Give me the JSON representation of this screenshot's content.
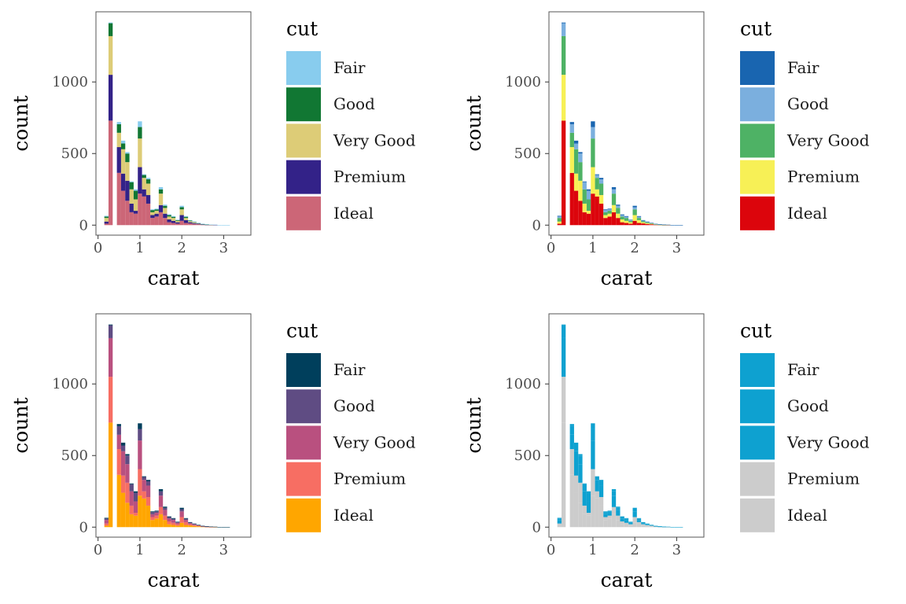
{
  "legend_title": "cut",
  "chart_data": [
    {
      "type": "bar",
      "stacked": true,
      "xlabel": "carat",
      "ylabel": "count",
      "xlim": [
        -0.05,
        3.65
      ],
      "ylim": [
        -70,
        1490
      ],
      "xticks": [
        0,
        1,
        2,
        3
      ],
      "yticks": [
        0,
        500,
        1000
      ],
      "grid": false,
      "legend_position": "right",
      "bin_width": 0.1,
      "categories": [
        0.2,
        0.3,
        0.5,
        0.6,
        0.7,
        0.8,
        0.9,
        1.0,
        1.1,
        1.2,
        1.3,
        1.4,
        1.5,
        1.6,
        1.7,
        1.8,
        1.9,
        2.0,
        2.1,
        2.2,
        2.3,
        2.4,
        2.5,
        2.6,
        2.7,
        2.8,
        2.9,
        3.0,
        3.1
      ],
      "series": [
        {
          "name": "Ideal",
          "color": "#CC6677",
          "values": [
            10,
            730,
            365,
            240,
            170,
            90,
            80,
            220,
            200,
            150,
            50,
            60,
            90,
            50,
            20,
            15,
            10,
            30,
            15,
            12,
            8,
            6,
            3,
            2,
            1,
            1,
            0,
            0,
            0
          ]
        },
        {
          "name": "Premium",
          "color": "#332288",
          "values": [
            15,
            320,
            180,
            120,
            140,
            60,
            20,
            185,
            50,
            60,
            20,
            20,
            50,
            30,
            20,
            15,
            10,
            40,
            20,
            8,
            6,
            4,
            2,
            1,
            1,
            1,
            0,
            0,
            0
          ]
        },
        {
          "name": "Very Good",
          "color": "#DDCC77",
          "values": [
            25,
            270,
            100,
            170,
            130,
            100,
            80,
            200,
            80,
            80,
            20,
            20,
            80,
            40,
            20,
            20,
            10,
            40,
            15,
            8,
            6,
            3,
            2,
            1,
            1,
            0,
            0,
            0,
            0
          ]
        },
        {
          "name": "Good",
          "color": "#117733",
          "values": [
            10,
            90,
            60,
            40,
            60,
            50,
            60,
            80,
            20,
            30,
            15,
            10,
            30,
            15,
            10,
            8,
            5,
            15,
            8,
            4,
            3,
            2,
            1,
            1,
            0,
            0,
            0,
            0,
            0
          ]
        },
        {
          "name": "Fair",
          "color": "#88CCEE",
          "values": [
            5,
            5,
            15,
            20,
            10,
            5,
            10,
            40,
            5,
            10,
            5,
            5,
            15,
            8,
            5,
            5,
            3,
            10,
            5,
            3,
            2,
            1,
            1,
            1,
            1,
            1,
            1,
            1,
            1
          ]
        }
      ],
      "legend_entries": [
        "Fair",
        "Good",
        "Very Good",
        "Premium",
        "Ideal"
      ]
    },
    {
      "type": "bar",
      "stacked": true,
      "xlabel": "carat",
      "ylabel": "count",
      "xlim": [
        -0.05,
        3.65
      ],
      "ylim": [
        -70,
        1490
      ],
      "xticks": [
        0,
        1,
        2,
        3
      ],
      "yticks": [
        0,
        500,
        1000
      ],
      "grid": false,
      "legend_position": "right",
      "bin_width": 0.1,
      "categories": [
        0.2,
        0.3,
        0.5,
        0.6,
        0.7,
        0.8,
        0.9,
        1.0,
        1.1,
        1.2,
        1.3,
        1.4,
        1.5,
        1.6,
        1.7,
        1.8,
        1.9,
        2.0,
        2.1,
        2.2,
        2.3,
        2.4,
        2.5,
        2.6,
        2.7,
        2.8,
        2.9,
        3.0,
        3.1
      ],
      "series": [
        {
          "name": "Ideal",
          "color": "#DC050C",
          "values": [
            10,
            730,
            365,
            240,
            170,
            90,
            80,
            220,
            200,
            150,
            50,
            60,
            90,
            50,
            20,
            15,
            10,
            30,
            15,
            12,
            8,
            6,
            3,
            2,
            1,
            1,
            0,
            0,
            0
          ]
        },
        {
          "name": "Premium",
          "color": "#F7F056",
          "values": [
            15,
            320,
            180,
            120,
            140,
            60,
            20,
            185,
            50,
            60,
            20,
            20,
            50,
            30,
            20,
            15,
            10,
            40,
            20,
            8,
            6,
            4,
            2,
            1,
            1,
            1,
            0,
            0,
            0
          ]
        },
        {
          "name": "Very Good",
          "color": "#4EB265",
          "values": [
            25,
            270,
            100,
            170,
            130,
            100,
            80,
            200,
            80,
            80,
            20,
            20,
            80,
            40,
            20,
            20,
            10,
            40,
            15,
            8,
            6,
            3,
            2,
            1,
            1,
            0,
            0,
            0,
            0
          ]
        },
        {
          "name": "Good",
          "color": "#7BAFDE",
          "values": [
            10,
            90,
            60,
            40,
            60,
            50,
            60,
            80,
            20,
            30,
            15,
            10,
            30,
            15,
            10,
            8,
            5,
            15,
            8,
            4,
            3,
            2,
            1,
            1,
            0,
            0,
            0,
            0,
            0
          ]
        },
        {
          "name": "Fair",
          "color": "#1965B0",
          "values": [
            5,
            5,
            15,
            20,
            10,
            5,
            10,
            40,
            5,
            10,
            5,
            5,
            15,
            8,
            5,
            5,
            3,
            10,
            5,
            3,
            2,
            1,
            1,
            1,
            1,
            1,
            1,
            1,
            1
          ]
        }
      ],
      "legend_entries": [
        "Fair",
        "Good",
        "Very Good",
        "Premium",
        "Ideal"
      ]
    },
    {
      "type": "bar",
      "stacked": true,
      "xlabel": "carat",
      "ylabel": "count",
      "xlim": [
        -0.05,
        3.65
      ],
      "ylim": [
        -70,
        1490
      ],
      "xticks": [
        0,
        1,
        2,
        3
      ],
      "yticks": [
        0,
        500,
        1000
      ],
      "grid": false,
      "legend_position": "right",
      "bin_width": 0.1,
      "categories": [
        0.2,
        0.3,
        0.5,
        0.6,
        0.7,
        0.8,
        0.9,
        1.0,
        1.1,
        1.2,
        1.3,
        1.4,
        1.5,
        1.6,
        1.7,
        1.8,
        1.9,
        2.0,
        2.1,
        2.2,
        2.3,
        2.4,
        2.5,
        2.6,
        2.7,
        2.8,
        2.9,
        3.0,
        3.1
      ],
      "series": [
        {
          "name": "Ideal",
          "color": "#FFA600",
          "values": [
            10,
            730,
            365,
            240,
            170,
            90,
            80,
            220,
            200,
            150,
            50,
            60,
            90,
            50,
            20,
            15,
            10,
            30,
            15,
            12,
            8,
            6,
            3,
            2,
            1,
            1,
            0,
            0,
            0
          ]
        },
        {
          "name": "Premium",
          "color": "#F76E63",
          "values": [
            15,
            320,
            180,
            120,
            140,
            60,
            20,
            185,
            50,
            60,
            20,
            20,
            50,
            30,
            20,
            15,
            10,
            40,
            20,
            8,
            6,
            4,
            2,
            1,
            1,
            1,
            0,
            0,
            0
          ]
        },
        {
          "name": "Very Good",
          "color": "#B9507F",
          "values": [
            25,
            270,
            100,
            170,
            130,
            100,
            80,
            200,
            80,
            80,
            20,
            20,
            80,
            40,
            20,
            20,
            10,
            40,
            15,
            8,
            6,
            3,
            2,
            1,
            1,
            0,
            0,
            0,
            0
          ]
        },
        {
          "name": "Good",
          "color": "#5F4C83",
          "values": [
            10,
            90,
            60,
            40,
            60,
            50,
            60,
            80,
            20,
            30,
            15,
            10,
            30,
            15,
            10,
            8,
            5,
            15,
            8,
            4,
            3,
            2,
            1,
            1,
            0,
            0,
            0,
            0,
            0
          ]
        },
        {
          "name": "Fair",
          "color": "#003F5C",
          "values": [
            5,
            5,
            15,
            20,
            10,
            5,
            10,
            40,
            5,
            10,
            5,
            5,
            15,
            8,
            5,
            5,
            3,
            10,
            5,
            3,
            2,
            1,
            1,
            1,
            1,
            1,
            1,
            1,
            1
          ]
        }
      ],
      "legend_entries": [
        "Fair",
        "Good",
        "Very Good",
        "Premium",
        "Ideal"
      ]
    },
    {
      "type": "bar",
      "stacked": true,
      "xlabel": "carat",
      "ylabel": "count",
      "xlim": [
        -0.05,
        3.65
      ],
      "ylim": [
        -70,
        1490
      ],
      "xticks": [
        0,
        1,
        2,
        3
      ],
      "yticks": [
        0,
        500,
        1000
      ],
      "grid": false,
      "legend_position": "right",
      "bin_width": 0.1,
      "categories": [
        0.2,
        0.3,
        0.5,
        0.6,
        0.7,
        0.8,
        0.9,
        1.0,
        1.1,
        1.2,
        1.3,
        1.4,
        1.5,
        1.6,
        1.7,
        1.8,
        1.9,
        2.0,
        2.1,
        2.2,
        2.3,
        2.4,
        2.5,
        2.6,
        2.7,
        2.8,
        2.9,
        3.0,
        3.1
      ],
      "series": [
        {
          "name": "Ideal",
          "color": "#CCCCCC",
          "values": [
            10,
            730,
            365,
            240,
            170,
            90,
            80,
            220,
            200,
            150,
            50,
            60,
            90,
            50,
            20,
            15,
            10,
            30,
            15,
            12,
            8,
            6,
            3,
            2,
            1,
            1,
            0,
            0,
            0
          ]
        },
        {
          "name": "Premium",
          "color": "#CCCCCC",
          "values": [
            15,
            320,
            180,
            120,
            140,
            60,
            20,
            185,
            50,
            60,
            20,
            20,
            50,
            30,
            20,
            15,
            10,
            40,
            20,
            8,
            6,
            4,
            2,
            1,
            1,
            1,
            0,
            0,
            0
          ]
        },
        {
          "name": "Very Good",
          "color": "#0EA1D0",
          "values": [
            25,
            270,
            100,
            170,
            130,
            100,
            80,
            200,
            80,
            80,
            20,
            20,
            80,
            40,
            20,
            20,
            10,
            40,
            15,
            8,
            6,
            3,
            2,
            1,
            1,
            0,
            0,
            0,
            0
          ]
        },
        {
          "name": "Good",
          "color": "#0EA1D0",
          "values": [
            10,
            90,
            60,
            40,
            60,
            50,
            60,
            80,
            20,
            30,
            15,
            10,
            30,
            15,
            10,
            8,
            5,
            15,
            8,
            4,
            3,
            2,
            1,
            1,
            0,
            0,
            0,
            0,
            0
          ]
        },
        {
          "name": "Fair",
          "color": "#0EA1D0",
          "values": [
            5,
            5,
            15,
            20,
            10,
            5,
            10,
            40,
            5,
            10,
            5,
            5,
            15,
            8,
            5,
            5,
            3,
            10,
            5,
            3,
            2,
            1,
            1,
            1,
            1,
            1,
            1,
            1,
            1
          ]
        }
      ],
      "legend_entries": [
        "Fair",
        "Good",
        "Very Good",
        "Premium",
        "Ideal"
      ]
    }
  ]
}
